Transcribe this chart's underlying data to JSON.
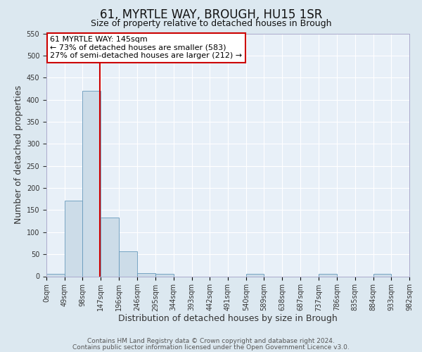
{
  "title": "61, MYRTLE WAY, BROUGH, HU15 1SR",
  "subtitle": "Size of property relative to detached houses in Brough",
  "xlabel": "Distribution of detached houses by size in Brough",
  "ylabel": "Number of detached properties",
  "bin_edges": [
    0,
    49,
    98,
    147,
    196,
    246,
    295,
    344,
    393,
    442,
    491,
    540,
    589,
    638,
    687,
    737,
    786,
    835,
    884,
    933,
    982
  ],
  "bar_heights": [
    5,
    172,
    420,
    133,
    57,
    7,
    6,
    0,
    0,
    0,
    0,
    5,
    0,
    0,
    0,
    5,
    0,
    0,
    5,
    0
  ],
  "bar_color": "#ccdce8",
  "bar_edge_color": "#6699bb",
  "property_line_x": 145,
  "property_line_color": "#cc0000",
  "ylim": [
    0,
    550
  ],
  "yticks": [
    0,
    50,
    100,
    150,
    200,
    250,
    300,
    350,
    400,
    450,
    500,
    550
  ],
  "annotation_line1": "61 MYRTLE WAY: 145sqm",
  "annotation_line2": "← 73% of detached houses are smaller (583)",
  "annotation_line3": "27% of semi-detached houses are larger (212) →",
  "annotation_box_color": "#cc0000",
  "annotation_bg_color": "#ffffff",
  "footer_line1": "Contains HM Land Registry data © Crown copyright and database right 2024.",
  "footer_line2": "Contains public sector information licensed under the Open Government Licence v3.0.",
  "fig_bg_color": "#dce8f0",
  "plot_bg_color": "#e8f0f8",
  "grid_color": "#ffffff",
  "tick_label_color": "#333333",
  "title_fontsize": 12,
  "subtitle_fontsize": 9,
  "axis_label_fontsize": 9,
  "tick_fontsize": 7,
  "annotation_fontsize": 8,
  "footer_fontsize": 6.5
}
